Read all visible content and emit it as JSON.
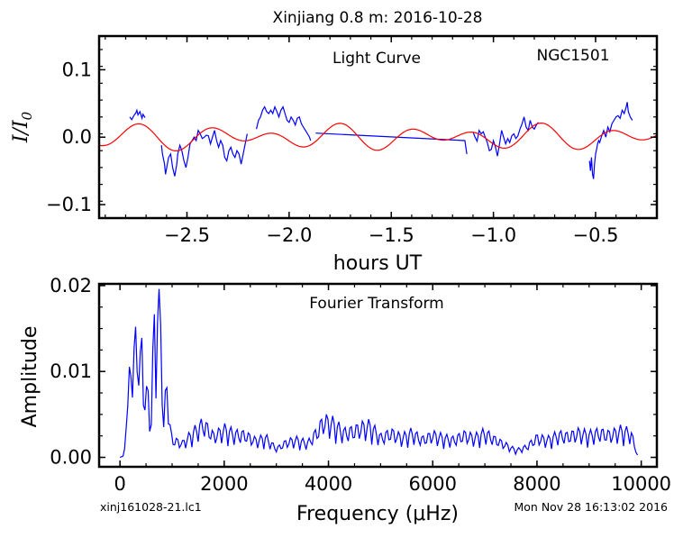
{
  "figure": {
    "title": "Xinjiang 0.8 m:  2016-10-28",
    "footer_left": "xinj161028-21.lc1",
    "footer_right": "Mon Nov 28 16:13:02 2016"
  },
  "chart_data": [
    {
      "type": "line",
      "panel": "light-curve",
      "annotation": "Light Curve",
      "object": "NGC1501",
      "xlabel": "hours UT",
      "ylabel": "I/I0",
      "xlim": [
        -2.93,
        -0.2
      ],
      "ylim": [
        -0.12,
        0.15
      ],
      "xticks": [
        -2.5,
        -2.0,
        -1.5,
        -1.0,
        -0.5
      ],
      "xtick_labels": [
        "−2.5",
        "−2.0",
        "−1.5",
        "−1.0",
        "−0.5"
      ],
      "yticks": [
        0.1,
        0.0,
        -0.1
      ],
      "ytick_labels": [
        "0.1",
        "0.0",
        "−0.1"
      ],
      "grid": false,
      "series": [
        {
          "color": "#0000ff",
          "segments": [
            [
              [
                -2.78,
                0.03
              ],
              [
                -2.77,
                0.026
              ],
              [
                -2.76,
                0.032
              ],
              [
                -2.75,
                0.036
              ],
              [
                -2.745,
                0.04
              ],
              [
                -2.74,
                0.033
              ],
              [
                -2.73,
                0.038
              ],
              [
                -2.72,
                0.028
              ],
              [
                -2.715,
                0.034
              ],
              [
                -2.705,
                0.029
              ]
            ],
            [
              [
                -2.625,
                -0.012
              ],
              [
                -2.62,
                -0.025
              ],
              [
                -2.61,
                -0.04
              ],
              [
                -2.605,
                -0.055
              ],
              [
                -2.595,
                -0.038
              ],
              [
                -2.59,
                -0.03
              ],
              [
                -2.58,
                -0.025
              ],
              [
                -2.57,
                -0.045
              ],
              [
                -2.56,
                -0.058
              ],
              [
                -2.55,
                -0.04
              ],
              [
                -2.545,
                -0.025
              ],
              [
                -2.535,
                -0.012
              ],
              [
                -2.525,
                -0.02
              ],
              [
                -2.515,
                -0.035
              ],
              [
                -2.505,
                -0.045
              ],
              [
                -2.495,
                -0.03
              ],
              [
                -2.485,
                -0.01
              ],
              [
                -2.475,
                -0.005
              ],
              [
                -2.465,
                0.0
              ],
              [
                -2.455,
                -0.005
              ],
              [
                -2.445,
                0.01
              ],
              [
                -2.435,
                0.005
              ],
              [
                -2.425,
                -0.002
              ],
              [
                -2.415,
                0.0
              ],
              [
                -2.405,
                0.003
              ],
              [
                -2.395,
                0.002
              ],
              [
                -2.385,
                -0.01
              ],
              [
                -2.375,
                0.0
              ],
              [
                -2.365,
                0.01
              ],
              [
                -2.355,
                -0.005
              ],
              [
                -2.345,
                -0.015
              ],
              [
                -2.335,
                -0.005
              ],
              [
                -2.325,
                -0.012
              ],
              [
                -2.315,
                -0.03
              ],
              [
                -2.305,
                -0.035
              ],
              [
                -2.295,
                -0.02
              ],
              [
                -2.285,
                -0.015
              ],
              [
                -2.275,
                -0.025
              ],
              [
                -2.265,
                -0.03
              ],
              [
                -2.255,
                -0.02
              ],
              [
                -2.245,
                -0.025
              ],
              [
                -2.235,
                -0.04
              ],
              [
                -2.225,
                -0.025
              ],
              [
                -2.215,
                -0.01
              ],
              [
                -2.205,
                0.005
              ]
            ],
            [
              [
                -2.16,
                0.012
              ],
              [
                -2.15,
                0.025
              ],
              [
                -2.14,
                0.03
              ],
              [
                -2.13,
                0.04
              ],
              [
                -2.12,
                0.045
              ],
              [
                -2.11,
                0.038
              ],
              [
                -2.1,
                0.035
              ],
              [
                -2.09,
                0.04
              ],
              [
                -2.08,
                0.035
              ],
              [
                -2.07,
                0.045
              ],
              [
                -2.06,
                0.038
              ],
              [
                -2.05,
                0.03
              ],
              [
                -2.04,
                0.04
              ],
              [
                -2.03,
                0.045
              ],
              [
                -2.02,
                0.035
              ],
              [
                -2.01,
                0.025
              ],
              [
                -2.0,
                0.022
              ],
              [
                -1.99,
                0.03
              ],
              [
                -1.98,
                0.025
              ],
              [
                -1.97,
                0.018
              ],
              [
                -1.96,
                0.028
              ],
              [
                -1.95,
                0.03
              ],
              [
                -1.94,
                0.02
              ],
              [
                -1.93,
                0.015
              ],
              [
                -1.92,
                0.01
              ],
              [
                -1.91,
                0.005
              ],
              [
                -1.9,
                0.0
              ],
              [
                -1.895,
                -0.005
              ]
            ],
            [
              [
                -1.87,
                0.006
              ],
              [
                -1.14,
                -0.005
              ],
              [
                -1.13,
                -0.025
              ]
            ],
            [
              [
                -1.1,
                0.008
              ],
              [
                -1.09,
                0.0
              ],
              [
                -1.08,
                -0.006
              ],
              [
                -1.07,
                0.01
              ],
              [
                -1.06,
                0.005
              ],
              [
                -1.05,
                0.008
              ],
              [
                -1.04,
                0.0
              ],
              [
                -1.03,
                -0.008
              ],
              [
                -1.02,
                -0.02
              ],
              [
                -1.01,
                -0.018
              ],
              [
                -1.0,
                -0.005
              ],
              [
                -0.99,
                -0.015
              ],
              [
                -0.98,
                -0.028
              ],
              [
                -0.97,
                -0.01
              ],
              [
                -0.96,
                0.01
              ],
              [
                -0.95,
                0.0
              ],
              [
                -0.94,
                -0.01
              ],
              [
                -0.93,
                -0.002
              ],
              [
                -0.92,
                -0.008
              ],
              [
                -0.91,
                0.002
              ],
              [
                -0.9,
                0.005
              ],
              [
                -0.89,
                -0.002
              ],
              [
                -0.88,
                0.002
              ],
              [
                -0.87,
                0.012
              ],
              [
                -0.86,
                0.02
              ],
              [
                -0.85,
                0.03
              ],
              [
                -0.84,
                0.015
              ],
              [
                -0.83,
                0.01
              ],
              [
                -0.82,
                0.025
              ],
              [
                -0.81,
                0.015
              ],
              [
                -0.8,
                0.012
              ],
              [
                -0.79,
                0.018
              ],
              [
                -0.78,
                0.022
              ]
            ],
            [
              [
                -0.53,
                -0.035
              ],
              [
                -0.525,
                -0.05
              ],
              [
                -0.52,
                -0.03
              ],
              [
                -0.515,
                -0.055
              ],
              [
                -0.51,
                -0.062
              ],
              [
                -0.505,
                -0.04
              ],
              [
                -0.5,
                -0.025
              ],
              [
                -0.495,
                -0.018
              ],
              [
                -0.49,
                -0.01
              ],
              [
                -0.485,
                -0.005
              ],
              [
                -0.48,
                -0.008
              ],
              [
                -0.47,
                0.002
              ],
              [
                -0.46,
                0.01
              ],
              [
                -0.45,
                0.0
              ],
              [
                -0.44,
                0.015
              ],
              [
                -0.43,
                0.008
              ],
              [
                -0.42,
                0.02
              ],
              [
                -0.41,
                0.025
              ],
              [
                -0.4,
                0.03
              ],
              [
                -0.39,
                0.032
              ],
              [
                -0.38,
                0.028
              ],
              [
                -0.37,
                0.04
              ],
              [
                -0.36,
                0.035
              ],
              [
                -0.35,
                0.045
              ],
              [
                -0.345,
                0.052
              ],
              [
                -0.34,
                0.038
              ],
              [
                -0.33,
                0.03
              ],
              [
                -0.32,
                0.025
              ]
            ]
          ]
        },
        {
          "color": "#ff0000",
          "fit": {
            "x_start": -2.93,
            "x_end": -0.2,
            "components": [
              {
                "amplitude": 0.0125,
                "period_hours": 0.327,
                "zero_crossing": -2.48
              },
              {
                "amplitude": 0.0085,
                "period_hours": 0.5,
                "zero_crossing": -1.9
              }
            ]
          }
        }
      ]
    },
    {
      "type": "line",
      "panel": "fourier-transform",
      "annotation": "Fourier Transform",
      "xlabel": "Frequency (μHz)",
      "ylabel": "Amplitude",
      "xlim": [
        -400,
        10300
      ],
      "ylim": [
        -0.0011,
        0.0202
      ],
      "xticks": [
        0,
        2000,
        4000,
        6000,
        8000,
        10000
      ],
      "xtick_labels": [
        "0",
        "2000",
        "4000",
        "6000",
        "8000",
        "10000"
      ],
      "yticks": [
        0.02,
        0.01,
        0.0
      ],
      "ytick_labels": [
        "0.02",
        "0.01",
        "0.00"
      ],
      "grid": false,
      "series": [
        {
          "color": "#0000ff",
          "x_start": 0,
          "x_end": 9930,
          "x_step": 30,
          "lobe_width": 115,
          "envelope": [
            [
              0,
              0.0
            ],
            [
              80,
              0.0002
            ],
            [
              150,
              0.006
            ],
            [
              200,
              0.0138
            ],
            [
              260,
              0.013
            ],
            [
              320,
              0.0172
            ],
            [
              380,
              0.012
            ],
            [
              420,
              0.015
            ],
            [
              480,
              0.008
            ],
            [
              540,
              0.0088
            ],
            [
              600,
              0.005
            ],
            [
              660,
              0.0202
            ],
            [
              720,
              0.019
            ],
            [
              790,
              0.0205
            ],
            [
              840,
              0.004
            ],
            [
              900,
              0.0118
            ],
            [
              950,
              0.0045
            ],
            [
              1000,
              0.0025
            ],
            [
              1200,
              0.002
            ],
            [
              1400,
              0.0035
            ],
            [
              1600,
              0.0048
            ],
            [
              1800,
              0.003
            ],
            [
              2000,
              0.004
            ],
            [
              2200,
              0.0033
            ],
            [
              2400,
              0.0032
            ],
            [
              2600,
              0.0024
            ],
            [
              2800,
              0.0028
            ],
            [
              3000,
              0.0012
            ],
            [
              3200,
              0.0022
            ],
            [
              3400,
              0.0025
            ],
            [
              3600,
              0.002
            ],
            [
              3800,
              0.0038
            ],
            [
              3900,
              0.0052
            ],
            [
              4100,
              0.0048
            ],
            [
              4300,
              0.0035
            ],
            [
              4500,
              0.0038
            ],
            [
              4600,
              0.0042
            ],
            [
              4800,
              0.0045
            ],
            [
              5000,
              0.0028
            ],
            [
              5200,
              0.0035
            ],
            [
              5400,
              0.0028
            ],
            [
              5600,
              0.0035
            ],
            [
              5800,
              0.0025
            ],
            [
              6000,
              0.0032
            ],
            [
              6200,
              0.0028
            ],
            [
              6400,
              0.0025
            ],
            [
              6600,
              0.0032
            ],
            [
              6800,
              0.0028
            ],
            [
              7000,
              0.0035
            ],
            [
              7200,
              0.0025
            ],
            [
              7400,
              0.0018
            ],
            [
              7600,
              0.001
            ],
            [
              7800,
              0.0015
            ],
            [
              8000,
              0.0028
            ],
            [
              8200,
              0.0025
            ],
            [
              8400,
              0.0032
            ],
            [
              8600,
              0.003
            ],
            [
              8800,
              0.0035
            ],
            [
              9000,
              0.0032
            ],
            [
              9200,
              0.0035
            ],
            [
              9400,
              0.0032
            ],
            [
              9600,
              0.0038
            ],
            [
              9800,
              0.0035
            ],
            [
              9930,
              0.0003
            ]
          ]
        }
      ]
    }
  ]
}
